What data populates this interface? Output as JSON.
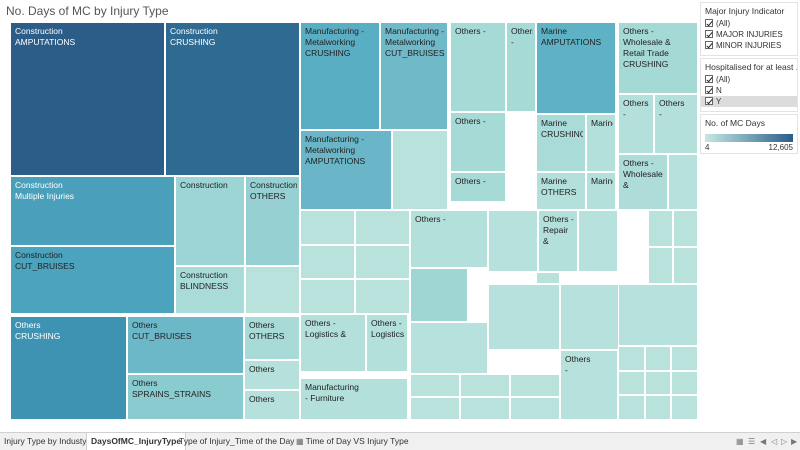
{
  "title": "No. Days of MC by Injury Type",
  "treemap": {
    "tiles": [
      {
        "label": "Construction\nAMPUTATIONS",
        "color": "#2b5d88",
        "text": "#ffffff"
      },
      {
        "label": "Construction\nCRUSHING",
        "color": "#2f6a93",
        "text": "#ffffff"
      },
      {
        "label": "Construction\nMultiple Injuries",
        "color": "#4a9fba",
        "text": "#ffffff"
      },
      {
        "label": "Construction\nCUT_BRUISES",
        "color": "#4ba3bd",
        "text": "#222222"
      },
      {
        "label": "Construction",
        "color": "#9dd4d5",
        "text": "#222222"
      },
      {
        "label": "Construction\nOTHERS",
        "color": "#96d0d2",
        "text": "#222222"
      },
      {
        "label": "Construction\nBLINDNESS",
        "color": "#a9dcd8",
        "text": "#222222"
      },
      {
        "label": "",
        "color": "#b9e2dc",
        "text": "#222222"
      },
      {
        "label": "Others\nCRUSHING",
        "color": "#3e93b3",
        "text": "#ffffff"
      },
      {
        "label": "Others\nCUT_BRUISES",
        "color": "#6db8c8",
        "text": "#222222"
      },
      {
        "label": "Others\nSPRAINS_STRAINS",
        "color": "#8acbd0",
        "text": "#222222"
      },
      {
        "label": "Others\nOTHERS",
        "color": "#a8dad7",
        "text": "#222222"
      },
      {
        "label": "Others",
        "color": "#b5e0db",
        "text": "#222222"
      },
      {
        "label": "Others",
        "color": "#b5e0db",
        "text": "#222222"
      },
      {
        "label": "Manufacturing -\nMetalworking\nCRUSHING",
        "color": "#5aaec3",
        "text": "#222222"
      },
      {
        "label": "Manufacturing -\nMetalworking\nCUT_BRUISES",
        "color": "#6fb9c9",
        "text": "#222222"
      },
      {
        "label": "Manufacturing -\nMetalworking\nAMPUTATIONS",
        "color": "#6ab6c8",
        "text": "#222222"
      },
      {
        "label": "",
        "color": "#b9e2dc",
        "text": "#222222"
      },
      {
        "label": "Others -",
        "color": "#a6dad6",
        "text": "#222222"
      },
      {
        "label": "Others -",
        "color": "#a6dad6",
        "text": "#222222"
      },
      {
        "label": "Others -",
        "color": "#a6dad6",
        "text": "#222222"
      },
      {
        "label": "Others -",
        "color": "#a6dad6",
        "text": "#222222"
      },
      {
        "label": "Marine\nAMPUTATIONS",
        "color": "#5fb1c5",
        "text": "#222222"
      },
      {
        "label": "Marine\nCRUSHING",
        "color": "#a9dcd8",
        "text": "#222222"
      },
      {
        "label": "Marine",
        "color": "#b3e0da",
        "text": "#222222"
      },
      {
        "label": "Marine\nOTHERS",
        "color": "#b3e0da",
        "text": "#222222"
      },
      {
        "label": "Marine",
        "color": "#b3e0da",
        "text": "#222222"
      },
      {
        "label": "Others -\nWholesale &\nRetail Trade\nCRUSHING",
        "color": "#a5d9d6",
        "text": "#222222"
      },
      {
        "label": "Others -",
        "color": "#b3e0da",
        "text": "#222222"
      },
      {
        "label": "Others\n-",
        "color": "#b3e0da",
        "text": "#222222"
      },
      {
        "label": "Others -\nWholesale &",
        "color": "#aedcd8",
        "text": "#222222"
      },
      {
        "label": "",
        "color": "#b7e1dc",
        "text": "#222222"
      },
      {
        "label": "Others -",
        "color": "#b3e0da",
        "text": "#222222"
      },
      {
        "label": "",
        "color": "#9fd6d4",
        "text": "#222222"
      },
      {
        "label": "Others -\nRepair &",
        "color": "#b3e0da",
        "text": "#222222"
      },
      {
        "label": "",
        "color": "#b7e1dc",
        "text": "#222222"
      },
      {
        "label": "",
        "color": "#b7e1dc",
        "text": "#222222"
      },
      {
        "label": "Others -\nLogistics &",
        "color": "#b3e0da",
        "text": "#222222"
      },
      {
        "label": "Others -\nLogistics",
        "color": "#b3e0da",
        "text": "#222222"
      },
      {
        "label": "Manufacturing\n- Furniture",
        "color": "#b3e0da",
        "text": "#222222"
      },
      {
        "label": "",
        "color": "#b7e1dc",
        "text": "#222222"
      },
      {
        "label": "",
        "color": "#b7e1dc",
        "text": "#222222"
      },
      {
        "label": "",
        "color": "#b7e1dc",
        "text": "#222222"
      },
      {
        "label": "Others\n-",
        "color": "#b7e1dc",
        "text": "#222222"
      },
      {
        "label": "",
        "color": "#b7e1dc",
        "text": "#222222"
      }
    ]
  },
  "filters": {
    "major_injury": {
      "title": "Major Injury Indicator",
      "options": [
        "(All)",
        "MAJOR INJURIES",
        "MINOR INJURIES"
      ]
    },
    "hospitalised": {
      "title": "Hospitalised for at least ...",
      "options": [
        "(All)",
        "N",
        "Y"
      ]
    }
  },
  "legend": {
    "title": "No. of MC Days",
    "min": "4",
    "max": "12,605",
    "color_min": "#c4e9e3",
    "color_max": "#2a5d8a"
  },
  "tabs": [
    {
      "label": "Injury Type by Industy",
      "icon": ""
    },
    {
      "label": "DaysOfMC_InjuryType",
      "icon": ""
    },
    {
      "label": "Type of Injury_Time of the Day",
      "icon": ""
    },
    {
      "label": "Time of Day VS Injury Type",
      "icon": "grid-icon"
    }
  ],
  "nav_icons": [
    "grid-view-icon",
    "list-view-icon",
    "first-page-icon",
    "prev-page-icon",
    "next-page-icon",
    "last-page-icon"
  ]
}
